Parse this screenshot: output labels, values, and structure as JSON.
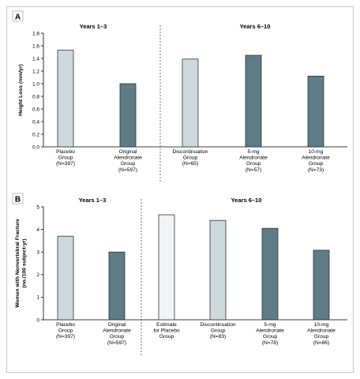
{
  "chart_data": [
    {
      "type": "bar",
      "panel": "A",
      "ylabel": "Height Loss (mm/yr)",
      "ylim": [
        0,
        1.8
      ],
      "yticks": [
        "0.0",
        "0.2",
        "0.4",
        "0.6",
        "0.8",
        "1.0",
        "1.2",
        "1.4",
        "1.6",
        "1.8"
      ],
      "periods": [
        "Years 1–3",
        "Years 6–10"
      ],
      "categories": [
        [
          "Placebo",
          "Group",
          "(N=397)"
        ],
        [
          "Original",
          "Alendronate",
          "Group",
          "(N=597)"
        ],
        [
          "Discontinuation",
          "Group",
          "(N=65)"
        ],
        [
          "5-mg",
          "Alendronate",
          "Group",
          "(N=57)"
        ],
        [
          "10-mg",
          "Alendronate",
          "Group",
          "(N=73)"
        ]
      ],
      "values": [
        1.53,
        1.0,
        1.39,
        1.45,
        1.12
      ],
      "colors": [
        "#cdd9dc",
        "#5e7c85",
        "#cdd9dc",
        "#5e7c85",
        "#5e7c85"
      ],
      "grid": false
    },
    {
      "type": "bar",
      "panel": "B",
      "ylabel": "Women with Nonvertebral Fracture (no./100 subject-yr)",
      "ylim": [
        0,
        5
      ],
      "yticks": [
        "0",
        "1",
        "2",
        "3",
        "4",
        "5"
      ],
      "periods": [
        "Years 1–3",
        "Years 6–10"
      ],
      "categories": [
        [
          "Placebo",
          "Group",
          "(N=397)"
        ],
        [
          "Original",
          "Alendronate",
          "Group",
          "(N=597)"
        ],
        [
          "Estimate",
          "for Placebo",
          "Group"
        ],
        [
          "Discontinuation",
          "Group",
          "(N=83)"
        ],
        [
          "5-mg",
          "Alendronate",
          "Group",
          "(N=78)"
        ],
        [
          "10-mg",
          "Alendronate",
          "Group",
          "(N=86)"
        ]
      ],
      "values": [
        3.7,
        3.0,
        4.65,
        4.4,
        4.05,
        3.08
      ],
      "colors": [
        "#cdd9dc",
        "#5e7c85",
        "#f1f4f5",
        "#cdd9dc",
        "#5e7c85",
        "#5e7c85"
      ],
      "grid": false
    }
  ]
}
